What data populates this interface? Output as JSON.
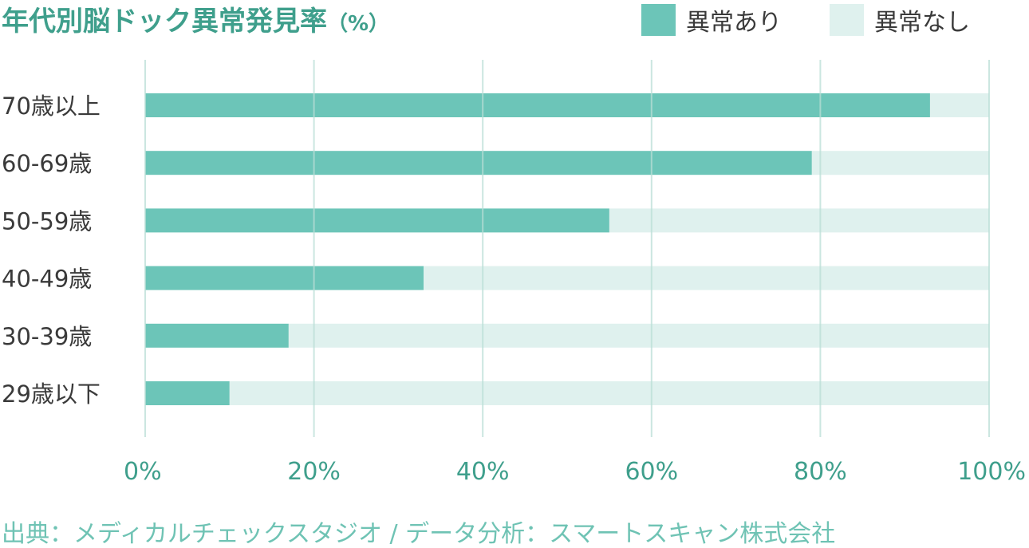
{
  "chart_data": {
    "type": "bar",
    "orientation": "horizontal",
    "stacked": true,
    "title": "年代別脳ドック異常発見率",
    "title_unit": "（%）",
    "categories": [
      "70歳以上",
      "60-69歳",
      "50-59歳",
      "40-49歳",
      "30-39歳",
      "29歳以下"
    ],
    "series": [
      {
        "name": "異常あり",
        "color": "#6cc5b8",
        "values": [
          93,
          79,
          55,
          33,
          17,
          10
        ]
      },
      {
        "name": "異常なし",
        "color": "#dff1ee",
        "values": [
          7,
          21,
          45,
          67,
          83,
          90
        ]
      }
    ],
    "xlim": [
      0,
      100
    ],
    "x_ticks": [
      0,
      20,
      40,
      60,
      80,
      100
    ],
    "x_tick_labels": [
      "0%",
      "20%",
      "40%",
      "60%",
      "80%",
      "100%"
    ],
    "grid": true,
    "grid_color": "#b9ddd6",
    "legend_position": "top-right",
    "source": "出典：メディカルチェックスタジオ / データ分析：スマートスキャン株式会社"
  }
}
